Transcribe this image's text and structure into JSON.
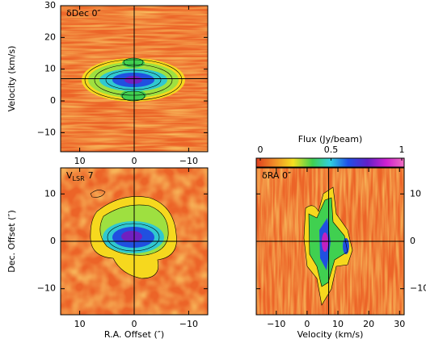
{
  "chart_data": [
    {
      "type": "heatmap",
      "annotation": "δDec 0″",
      "ylabel": "Velocity (km/s)",
      "xlim": [
        13.5,
        -13.5
      ],
      "ylim": [
        -16,
        30
      ],
      "xticks": [
        10,
        0,
        {
          "value": -10,
          "label": "−10"
        }
      ],
      "yticks": [
        {
          "value": -10,
          "label": "−10"
        },
        0,
        10,
        20,
        30
      ],
      "crosshair": {
        "x": 0,
        "y": 7
      }
    },
    {
      "type": "heatmap",
      "annotation": {
        "v": "V",
        "sub": "LSR",
        "value": 7
      },
      "xlabel": "R.A. Offset (″)",
      "ylabel": "Dec. Offset (″)",
      "xlim": [
        13.5,
        -13.5
      ],
      "ylim": [
        -15.5,
        15.5
      ],
      "xticks": [
        10,
        0,
        {
          "value": -10,
          "label": "−10"
        }
      ],
      "yticks": [
        {
          "value": -10,
          "label": "−10"
        },
        0,
        10
      ],
      "crosshair": {
        "x": 0,
        "y": 0
      }
    },
    {
      "type": "heatmap",
      "annotation": "δRA 0″",
      "xlabel": "Velocity (km/s)",
      "xlim": [
        -16.5,
        31.5
      ],
      "ylim": [
        -15.5,
        15.5
      ],
      "xticks": [
        {
          "value": -10,
          "label": "−10"
        },
        0,
        10,
        20,
        30
      ],
      "yticks": [
        {
          "value": -10,
          "label": "−10"
        },
        0,
        10
      ],
      "crosshair": {
        "x": 7,
        "y": 0
      },
      "colorbar": {
        "label": "Flux (Jy/beam)",
        "clim": [
          0,
          1
        ],
        "ticks": [
          0,
          0.5,
          1
        ]
      }
    }
  ]
}
